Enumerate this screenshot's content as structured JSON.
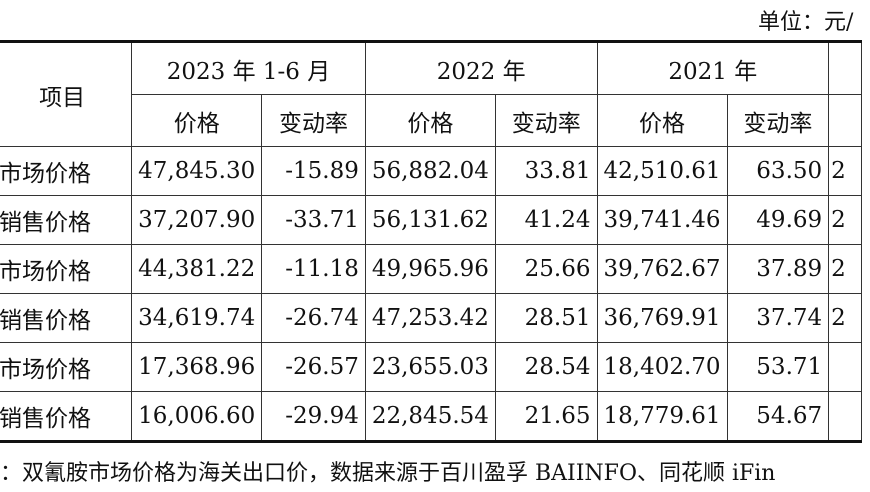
{
  "unit_label": "单位：元/",
  "header": {
    "item": "项目",
    "periods": [
      "2023 年 1-6 月",
      "2022 年",
      "2021 年"
    ],
    "price": "价格",
    "change": "变动率"
  },
  "rows": [
    {
      "label": "市场价格",
      "values": [
        "47,845.30",
        "-15.89",
        "56,882.04",
        "33.81",
        "42,510.61",
        "63.50"
      ],
      "cut": "2"
    },
    {
      "label": "销售价格",
      "values": [
        "37,207.90",
        "-33.71",
        "56,131.62",
        "41.24",
        "39,741.46",
        "49.69"
      ],
      "cut": "2"
    },
    {
      "label": "市场价格",
      "values": [
        "44,381.22",
        "-11.18",
        "49,965.96",
        "25.66",
        "39,762.67",
        "37.89"
      ],
      "cut": "2"
    },
    {
      "label": "销售价格",
      "values": [
        "34,619.74",
        "-26.74",
        "47,253.42",
        "28.51",
        "36,769.91",
        "37.74"
      ],
      "cut": "2"
    },
    {
      "label": "市场价格",
      "values": [
        "17,368.96",
        "-26.57",
        "23,655.03",
        "28.54",
        "18,402.70",
        "53.71"
      ],
      "cut": ""
    },
    {
      "label": "销售价格",
      "values": [
        "16,006.60",
        "-29.94",
        "22,845.54",
        "21.65",
        "18,779.61",
        "54.67"
      ],
      "cut": ""
    }
  ],
  "note": "：双氰胺市场价格为海关出口价，数据来源于百川盈孚 BAIINFO、同花顺 iFin"
}
